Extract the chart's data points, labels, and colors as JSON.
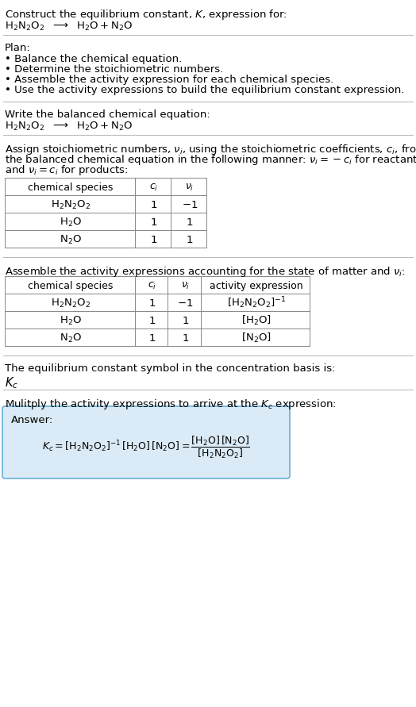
{
  "title_line1": "Construct the equilibrium constant, $K$, expression for:",
  "title_line2_plain": "H₂N₂O₂",
  "plan_header": "Plan:",
  "plan_bullets": [
    "• Balance the chemical equation.",
    "• Determine the stoichiometric numbers.",
    "• Assemble the activity expression for each chemical species.",
    "• Use the activity expressions to build the equilibrium constant expression."
  ],
  "balanced_eq_header": "Write the balanced chemical equation:",
  "stoich_intro_lines": [
    "Assign stoichiometric numbers, $\\nu_i$, using the stoichiometric coefficients, $c_i$, from",
    "the balanced chemical equation in the following manner: $\\nu_i = -c_i$ for reactants",
    "and $\\nu_i = c_i$ for products:"
  ],
  "table1_headers": [
    "chemical species",
    "$c_i$",
    "$\\nu_i$"
  ],
  "table1_rows": [
    [
      "$\\mathrm{H_2N_2O_2}$",
      "1",
      "$-1$"
    ],
    [
      "$\\mathrm{H_2O}$",
      "1",
      "1"
    ],
    [
      "$\\mathrm{N_2O}$",
      "1",
      "1"
    ]
  ],
  "assemble_intro": "Assemble the activity expressions accounting for the state of matter and $\\nu_i$:",
  "table2_headers": [
    "chemical species",
    "$c_i$",
    "$\\nu_i$",
    "activity expression"
  ],
  "table2_rows": [
    [
      "$\\mathrm{H_2N_2O_2}$",
      "1",
      "$-1$",
      "$[\\mathrm{H_2N_2O_2}]^{-1}$"
    ],
    [
      "$\\mathrm{H_2O}$",
      "1",
      "1",
      "$[\\mathrm{H_2O}]$"
    ],
    [
      "$\\mathrm{N_2O}$",
      "1",
      "1",
      "$[\\mathrm{N_2O}]$"
    ]
  ],
  "kc_intro": "The equilibrium constant symbol in the concentration basis is:",
  "kc_symbol": "$K_c$",
  "multiply_intro": "Mulitply the activity expressions to arrive at the $K_c$ expression:",
  "answer_label": "Answer:",
  "answer_box_color": "#daeaf6",
  "answer_box_edge": "#6aaed6",
  "background_color": "#ffffff",
  "text_color": "#000000",
  "sep_color": "#bbbbbb",
  "fs": 9.5,
  "fs_chem": 10,
  "fs_small": 9
}
